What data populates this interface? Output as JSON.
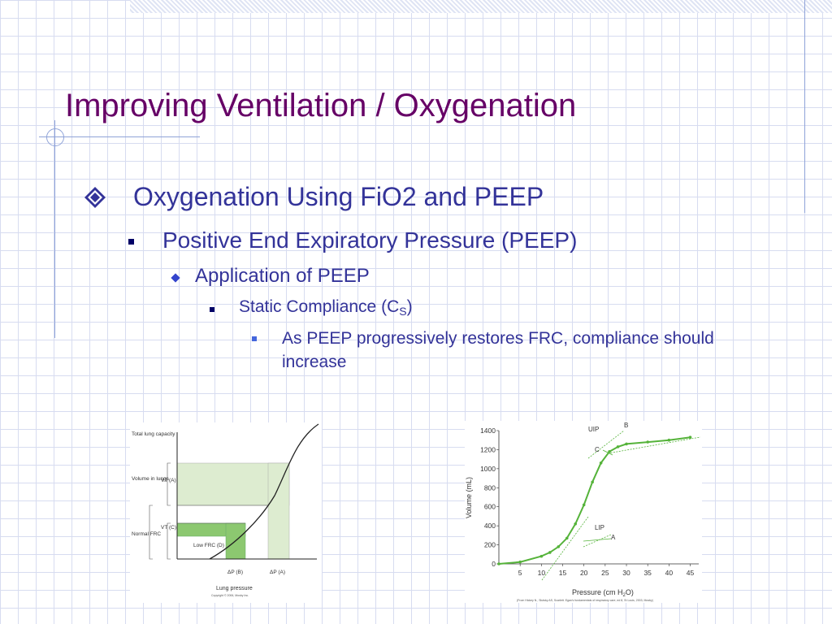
{
  "slide": {
    "title": "Improving Ventilation / Oxygenation",
    "bullets": [
      {
        "level": 1,
        "text": "Oxygenation Using FiO2 and PEEP"
      },
      {
        "level": 2,
        "text": "Positive End Expiratory Pressure (PEEP)"
      },
      {
        "level": 3,
        "text": "Application of PEEP"
      },
      {
        "level": 4,
        "text_before": "Static Compliance (C",
        "subscript": "S",
        "text_after": ")"
      },
      {
        "level": 5,
        "text": "As PEEP progressively restores FRC, compliance should increase"
      }
    ]
  },
  "colors": {
    "title": "#660066",
    "bullet_text": "#333399",
    "curve_green": "#55b33a",
    "fill_green": "#ddecd0",
    "bar_green": "#8cc870"
  },
  "chart_data": [
    {
      "type": "diagram",
      "labels": {
        "total_lung_capacity": "Total lung capacity",
        "volume_in_lungs": "Volume in lungs",
        "vt_a": "VT (A)",
        "vt_c": "VT (C)",
        "normal_frc": "Normal FRC",
        "low_frc": "Low FRC (D)",
        "dp_b": "ΔP (B)",
        "dp_a": "ΔP (A)",
        "lung_pressure": "Lung pressure",
        "copyright": "Copyright © 2006, Mosby Inc."
      }
    },
    {
      "type": "line",
      "xlabel": "Pressure (cm H2O)",
      "ylabel": "Volume (mL)",
      "x_ticks": [
        5,
        10,
        15,
        20,
        25,
        30,
        35,
        40,
        45
      ],
      "y_ticks": [
        0,
        200,
        400,
        600,
        800,
        1000,
        1200,
        1400
      ],
      "xlim": [
        0,
        47
      ],
      "ylim": [
        0,
        1400
      ],
      "series": [
        {
          "x": [
            0,
            5,
            10,
            12,
            14,
            16,
            18,
            20,
            22,
            24,
            26,
            28,
            30,
            35,
            40,
            45
          ],
          "values": [
            0,
            20,
            80,
            120,
            180,
            270,
            420,
            620,
            860,
            1060,
            1180,
            1230,
            1260,
            1280,
            1300,
            1330
          ]
        }
      ],
      "annotations": [
        "UIP",
        "B",
        "C",
        "LIP",
        "A"
      ],
      "source_note": "(From Hickey N., Slutsky AS, Scarlett. Egan's fundamentals of respiratory care, ed 8, St Louis, 2003, Mosby)"
    }
  ]
}
